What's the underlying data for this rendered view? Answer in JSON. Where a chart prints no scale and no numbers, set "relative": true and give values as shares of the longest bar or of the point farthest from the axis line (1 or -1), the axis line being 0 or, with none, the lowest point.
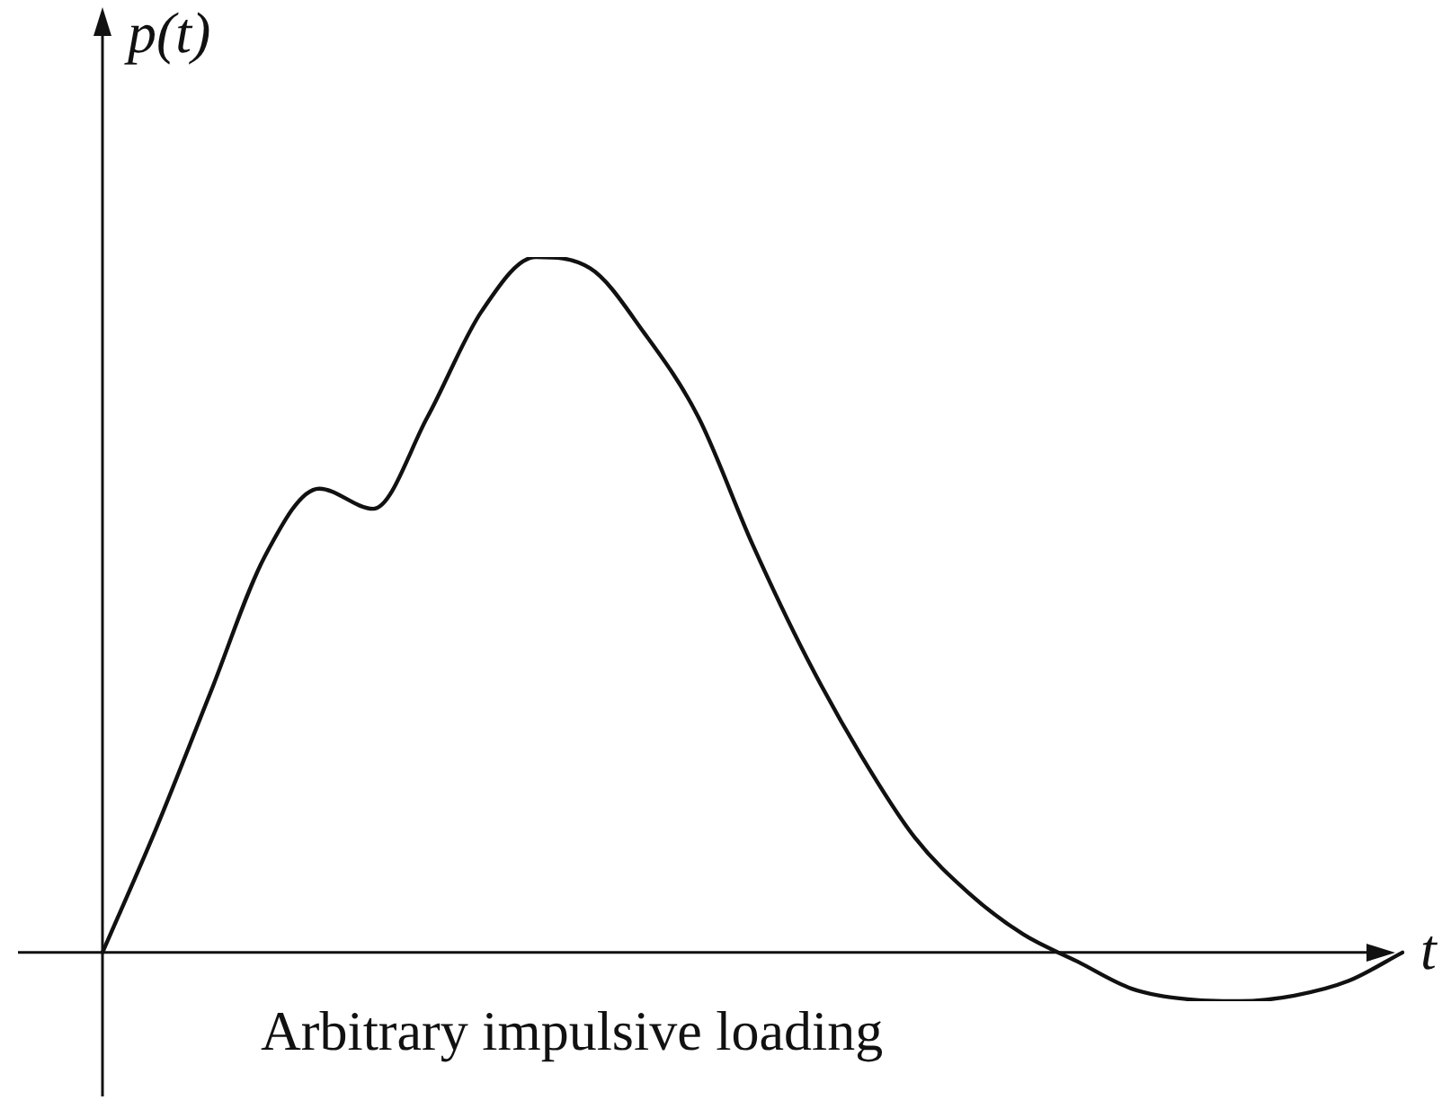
{
  "chart_data": {
    "type": "line",
    "relative": true,
    "xlabel": "t",
    "ylabel": "p(t)",
    "annotations": [
      "Arbitrary impulsive loading"
    ],
    "marker": "none",
    "line_style": "solid",
    "legend": false,
    "grid": false,
    "tick_labels": false,
    "categories": [
      null,
      null,
      null,
      null,
      null,
      null,
      null,
      null,
      null,
      null,
      null,
      null,
      null,
      null,
      null,
      null,
      null,
      null,
      null,
      null,
      null,
      null,
      null,
      null,
      null
    ],
    "series": [
      {
        "color": "#111111",
        "values": [
          0,
          0.18,
          0.375,
          0.57,
          0.667,
          0.638,
          0.77,
          0.922,
          1,
          0.984,
          0.891,
          0.77,
          0.587,
          0.424,
          0.284,
          0.165,
          0.085,
          0.026,
          -0.013,
          -0.052,
          -0.067,
          -0.07,
          -0.062,
          -0.041,
          0
        ]
      }
    ]
  }
}
